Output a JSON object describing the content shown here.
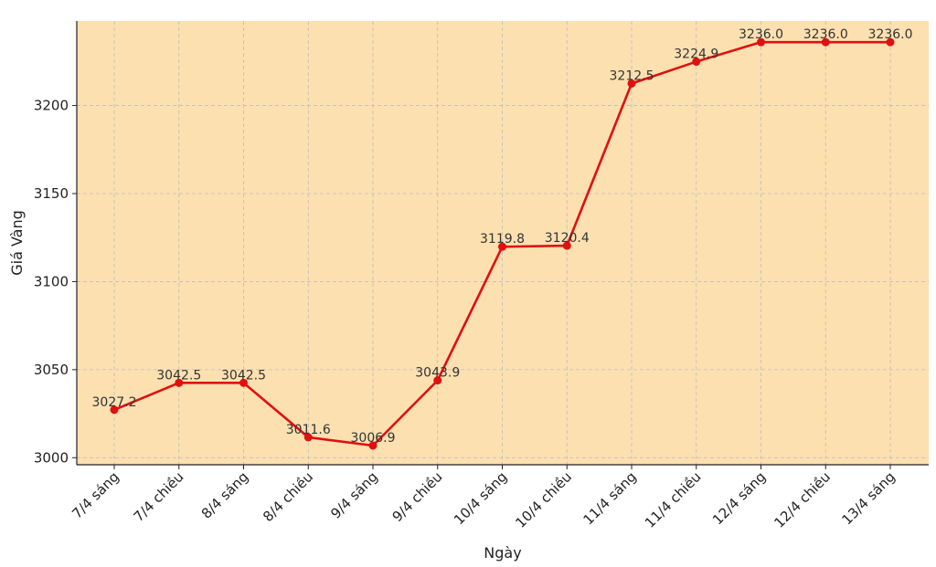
{
  "chart_data": {
    "type": "line",
    "xlabel": "Ngày",
    "ylabel": "Giá Vàng",
    "categories": [
      "7/4 sáng",
      "7/4 chiều",
      "8/4 sáng",
      "8/4 chiều",
      "9/4 sáng",
      "9/4 chiều",
      "10/4 sáng",
      "10/4 chiều",
      "11/4 sáng",
      "11/4 chiều",
      "12/4 sáng",
      "12/4 chiều",
      "13/4 sáng"
    ],
    "values": [
      3027.2,
      3042.5,
      3042.5,
      3011.6,
      3006.9,
      3043.9,
      3119.8,
      3120.4,
      3212.5,
      3224.9,
      3236.0,
      3236.0,
      3236.0
    ],
    "data_labels": [
      "3027.2",
      "3042.5",
      "3042.5",
      "3011.6",
      "3006.9",
      "3043.9",
      "3119.8",
      "3120.4",
      "3212.5",
      "3224.9",
      "3236.0",
      "3236.0",
      "3236.0"
    ],
    "y_ticks": [
      3000,
      3050,
      3100,
      3150,
      3200
    ],
    "y_tick_labels": [
      "3000",
      "3050",
      "3100",
      "3150",
      "3200"
    ],
    "ylim": [
      2996,
      3248
    ],
    "grid": true,
    "colors": {
      "line": "#e01010",
      "plot_bg": "#fde0b0",
      "grid": "#bbbbbb"
    }
  }
}
